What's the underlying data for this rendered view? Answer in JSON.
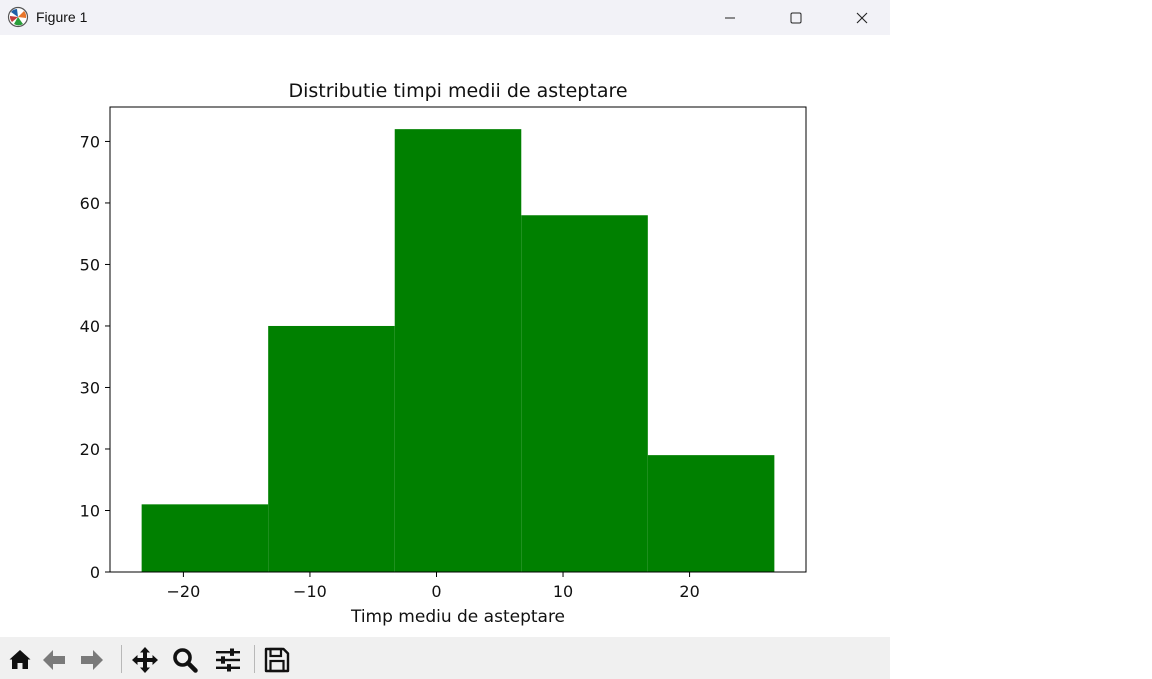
{
  "window": {
    "title": "Figure 1",
    "icons": {
      "app": "matplotlib-icon",
      "minimize": "minimize-icon",
      "maximize": "maximize-icon",
      "close": "close-icon"
    }
  },
  "toolbar": {
    "buttons": [
      {
        "name": "home",
        "icon": "home-icon"
      },
      {
        "name": "back",
        "icon": "back-arrow-icon"
      },
      {
        "name": "forward",
        "icon": "forward-arrow-icon"
      },
      {
        "name": "pan",
        "icon": "pan-icon"
      },
      {
        "name": "zoom",
        "icon": "zoom-icon"
      },
      {
        "name": "configure-subplots",
        "icon": "sliders-icon"
      },
      {
        "name": "save",
        "icon": "save-icon"
      }
    ]
  },
  "chart_data": {
    "type": "bar",
    "subtype": "histogram",
    "title": "Distributie timpi medii de asteptare",
    "xlabel": "Timp mediu de asteptare",
    "ylabel": "",
    "bin_edges": [
      -23.3,
      -13.3,
      -3.3,
      6.7,
      16.7,
      26.7
    ],
    "values": [
      11,
      40,
      72,
      58,
      19
    ],
    "xlim": [
      -25.8,
      29.2
    ],
    "ylim": [
      0,
      75.6
    ],
    "xticks": [
      -20,
      -10,
      0,
      10,
      20
    ],
    "xtick_labels": [
      "−20",
      "−10",
      "0",
      "10",
      "20"
    ],
    "yticks": [
      0,
      10,
      20,
      30,
      40,
      50,
      60,
      70
    ],
    "ytick_labels": [
      "0",
      "10",
      "20",
      "30",
      "40",
      "50",
      "60",
      "70"
    ],
    "color": "#008000",
    "grid": false,
    "legend": "none"
  }
}
